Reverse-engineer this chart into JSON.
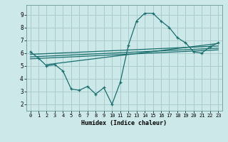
{
  "background_color": "#cce8e8",
  "grid_color": "#aacccc",
  "line_color": "#1a6e6e",
  "xlabel": "Humidex (Indice chaleur)",
  "xlim": [
    -0.5,
    23.5
  ],
  "ylim": [
    1.5,
    9.75
  ],
  "xtick_labels": [
    "0",
    "1",
    "2",
    "3",
    "4",
    "5",
    "6",
    "7",
    "8",
    "9",
    "10",
    "11",
    "12",
    "13",
    "14",
    "15",
    "16",
    "17",
    "18",
    "19",
    "20",
    "21",
    "22",
    "23"
  ],
  "ytick_values": [
    2,
    3,
    4,
    5,
    6,
    7,
    8,
    9
  ],
  "curve1_x": [
    0,
    1,
    2,
    3,
    4,
    5,
    6,
    7,
    8,
    9,
    10,
    11,
    12,
    13,
    14,
    15,
    16,
    17,
    18,
    19,
    20,
    21,
    22,
    23
  ],
  "curve1_y": [
    6.1,
    5.6,
    5.0,
    5.1,
    4.6,
    3.2,
    3.1,
    3.4,
    2.8,
    3.3,
    2.0,
    3.7,
    6.6,
    8.5,
    9.1,
    9.1,
    8.5,
    8.0,
    7.2,
    6.8,
    6.1,
    6.0,
    6.5,
    6.8
  ],
  "line1_x": [
    0,
    23
  ],
  "line1_y": [
    5.9,
    6.55
  ],
  "line2_x": [
    0,
    23
  ],
  "line2_y": [
    5.7,
    6.38
  ],
  "line3_x": [
    0,
    23
  ],
  "line3_y": [
    5.55,
    6.25
  ],
  "line4_x": [
    2,
    23
  ],
  "line4_y": [
    5.1,
    6.75
  ]
}
